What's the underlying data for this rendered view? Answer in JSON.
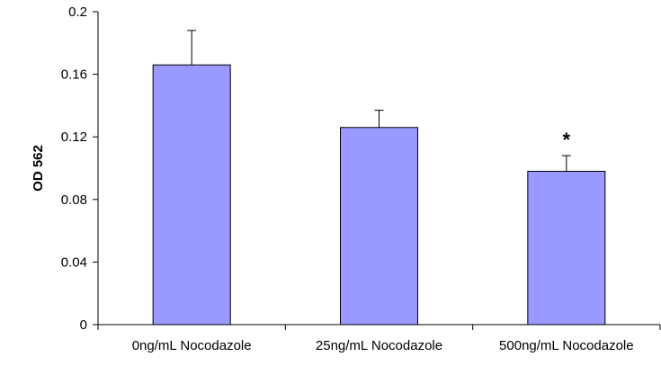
{
  "chart_data": {
    "type": "bar",
    "title": "",
    "xlabel": "",
    "ylabel": "OD 562",
    "categories": [
      "0ng/mL Nocodazole",
      "25ng/mL Nocodazole",
      "500ng/mL Nocodazole"
    ],
    "values": [
      0.166,
      0.126,
      0.098
    ],
    "error_plus": [
      0.022,
      0.011,
      0.01
    ],
    "ylim": [
      0,
      0.2
    ],
    "yticks": [
      "0",
      "0.04",
      "0.08",
      "0.12",
      "0.16",
      "0.2"
    ],
    "grid": false,
    "legend": "none",
    "bar_color": "#9999ff",
    "bar_edge_color": "#000000",
    "annotations": [
      {
        "category_index": 2,
        "text": "*"
      }
    ]
  }
}
